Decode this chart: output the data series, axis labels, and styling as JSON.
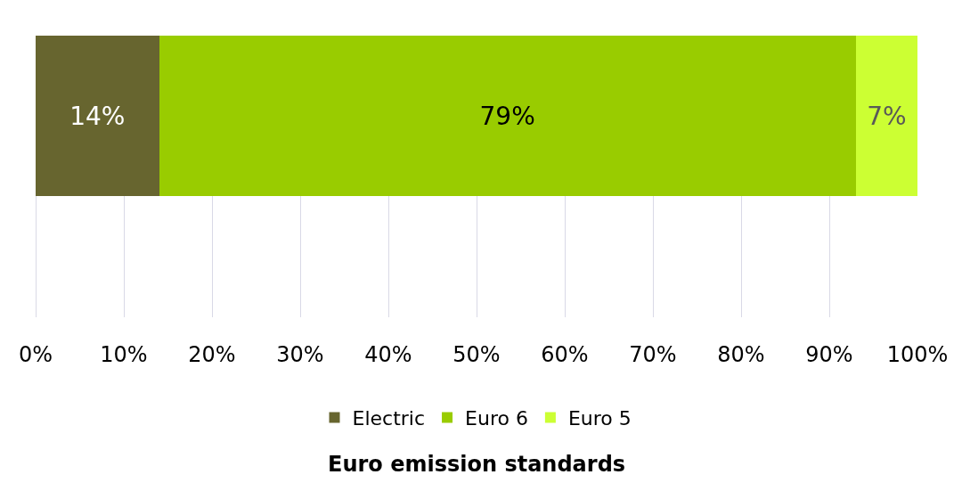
{
  "chart_data": {
    "type": "bar",
    "orientation": "horizontal",
    "stacked": true,
    "xlabel": "Euro emission standards",
    "categories": [
      null
    ],
    "series": [
      {
        "name": "Electric",
        "color": "#67652f",
        "values": [
          14
        ],
        "value_labels": [
          "14%"
        ]
      },
      {
        "name": "Euro 6",
        "color": "#99cc00",
        "values": [
          79
        ],
        "value_labels": [
          "79%"
        ]
      },
      {
        "name": "Euro 5",
        "color": "#ccff33",
        "values": [
          7
        ],
        "value_labels": [
          "7%"
        ]
      }
    ],
    "xlim": [
      0,
      100
    ],
    "xticks": [
      {
        "value": 0,
        "label": "0%"
      },
      {
        "value": 10,
        "label": "10%"
      },
      {
        "value": 20,
        "label": "20%"
      },
      {
        "value": 30,
        "label": "30%"
      },
      {
        "value": 40,
        "label": "40%"
      },
      {
        "value": 50,
        "label": "50%"
      },
      {
        "value": 60,
        "label": "60%"
      },
      {
        "value": 70,
        "label": "70%"
      },
      {
        "value": 80,
        "label": "80%"
      },
      {
        "value": 90,
        "label": "90%"
      },
      {
        "value": 100,
        "label": "100%"
      }
    ],
    "grid": "x",
    "legend": "bottom"
  }
}
